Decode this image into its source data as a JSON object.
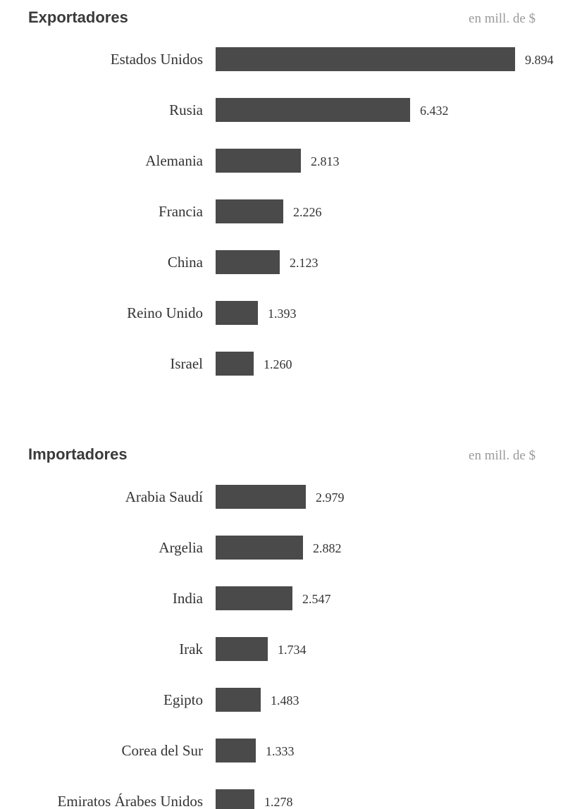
{
  "chart_data": [
    {
      "type": "bar",
      "orientation": "horizontal",
      "title": "Exportadores",
      "unit_label": "en mill. de $",
      "categories": [
        "Estados Unidos",
        "Rusia",
        "Alemania",
        "Francia",
        "China",
        "Reino Unido",
        "Israel"
      ],
      "values": [
        9894,
        6432,
        2813,
        2226,
        2123,
        1393,
        1260
      ],
      "value_labels": [
        "9.894",
        "6.432",
        "2.813",
        "2.226",
        "2.123",
        "1.393",
        "1.260"
      ],
      "xlim": [
        0,
        9894
      ],
      "grid": false,
      "legend": "none"
    },
    {
      "type": "bar",
      "orientation": "horizontal",
      "title": "Importadores",
      "unit_label": "en mill. de $",
      "categories": [
        "Arabia Saudí",
        "Argelia",
        "India",
        "Irak",
        "Egipto",
        "Corea del Sur",
        "Emiratos Árabes Unidos"
      ],
      "values": [
        2979,
        2882,
        2547,
        1734,
        1483,
        1333,
        1278
      ],
      "value_labels": [
        "2.979",
        "2.882",
        "2.547",
        "1.734",
        "1.483",
        "1.333",
        "1.278"
      ],
      "xlim": [
        0,
        9894
      ],
      "grid": false,
      "legend": "none"
    }
  ],
  "colors": {
    "bar": "#4a4a4a",
    "text": "#333333",
    "muted": "#9a9a9a"
  }
}
